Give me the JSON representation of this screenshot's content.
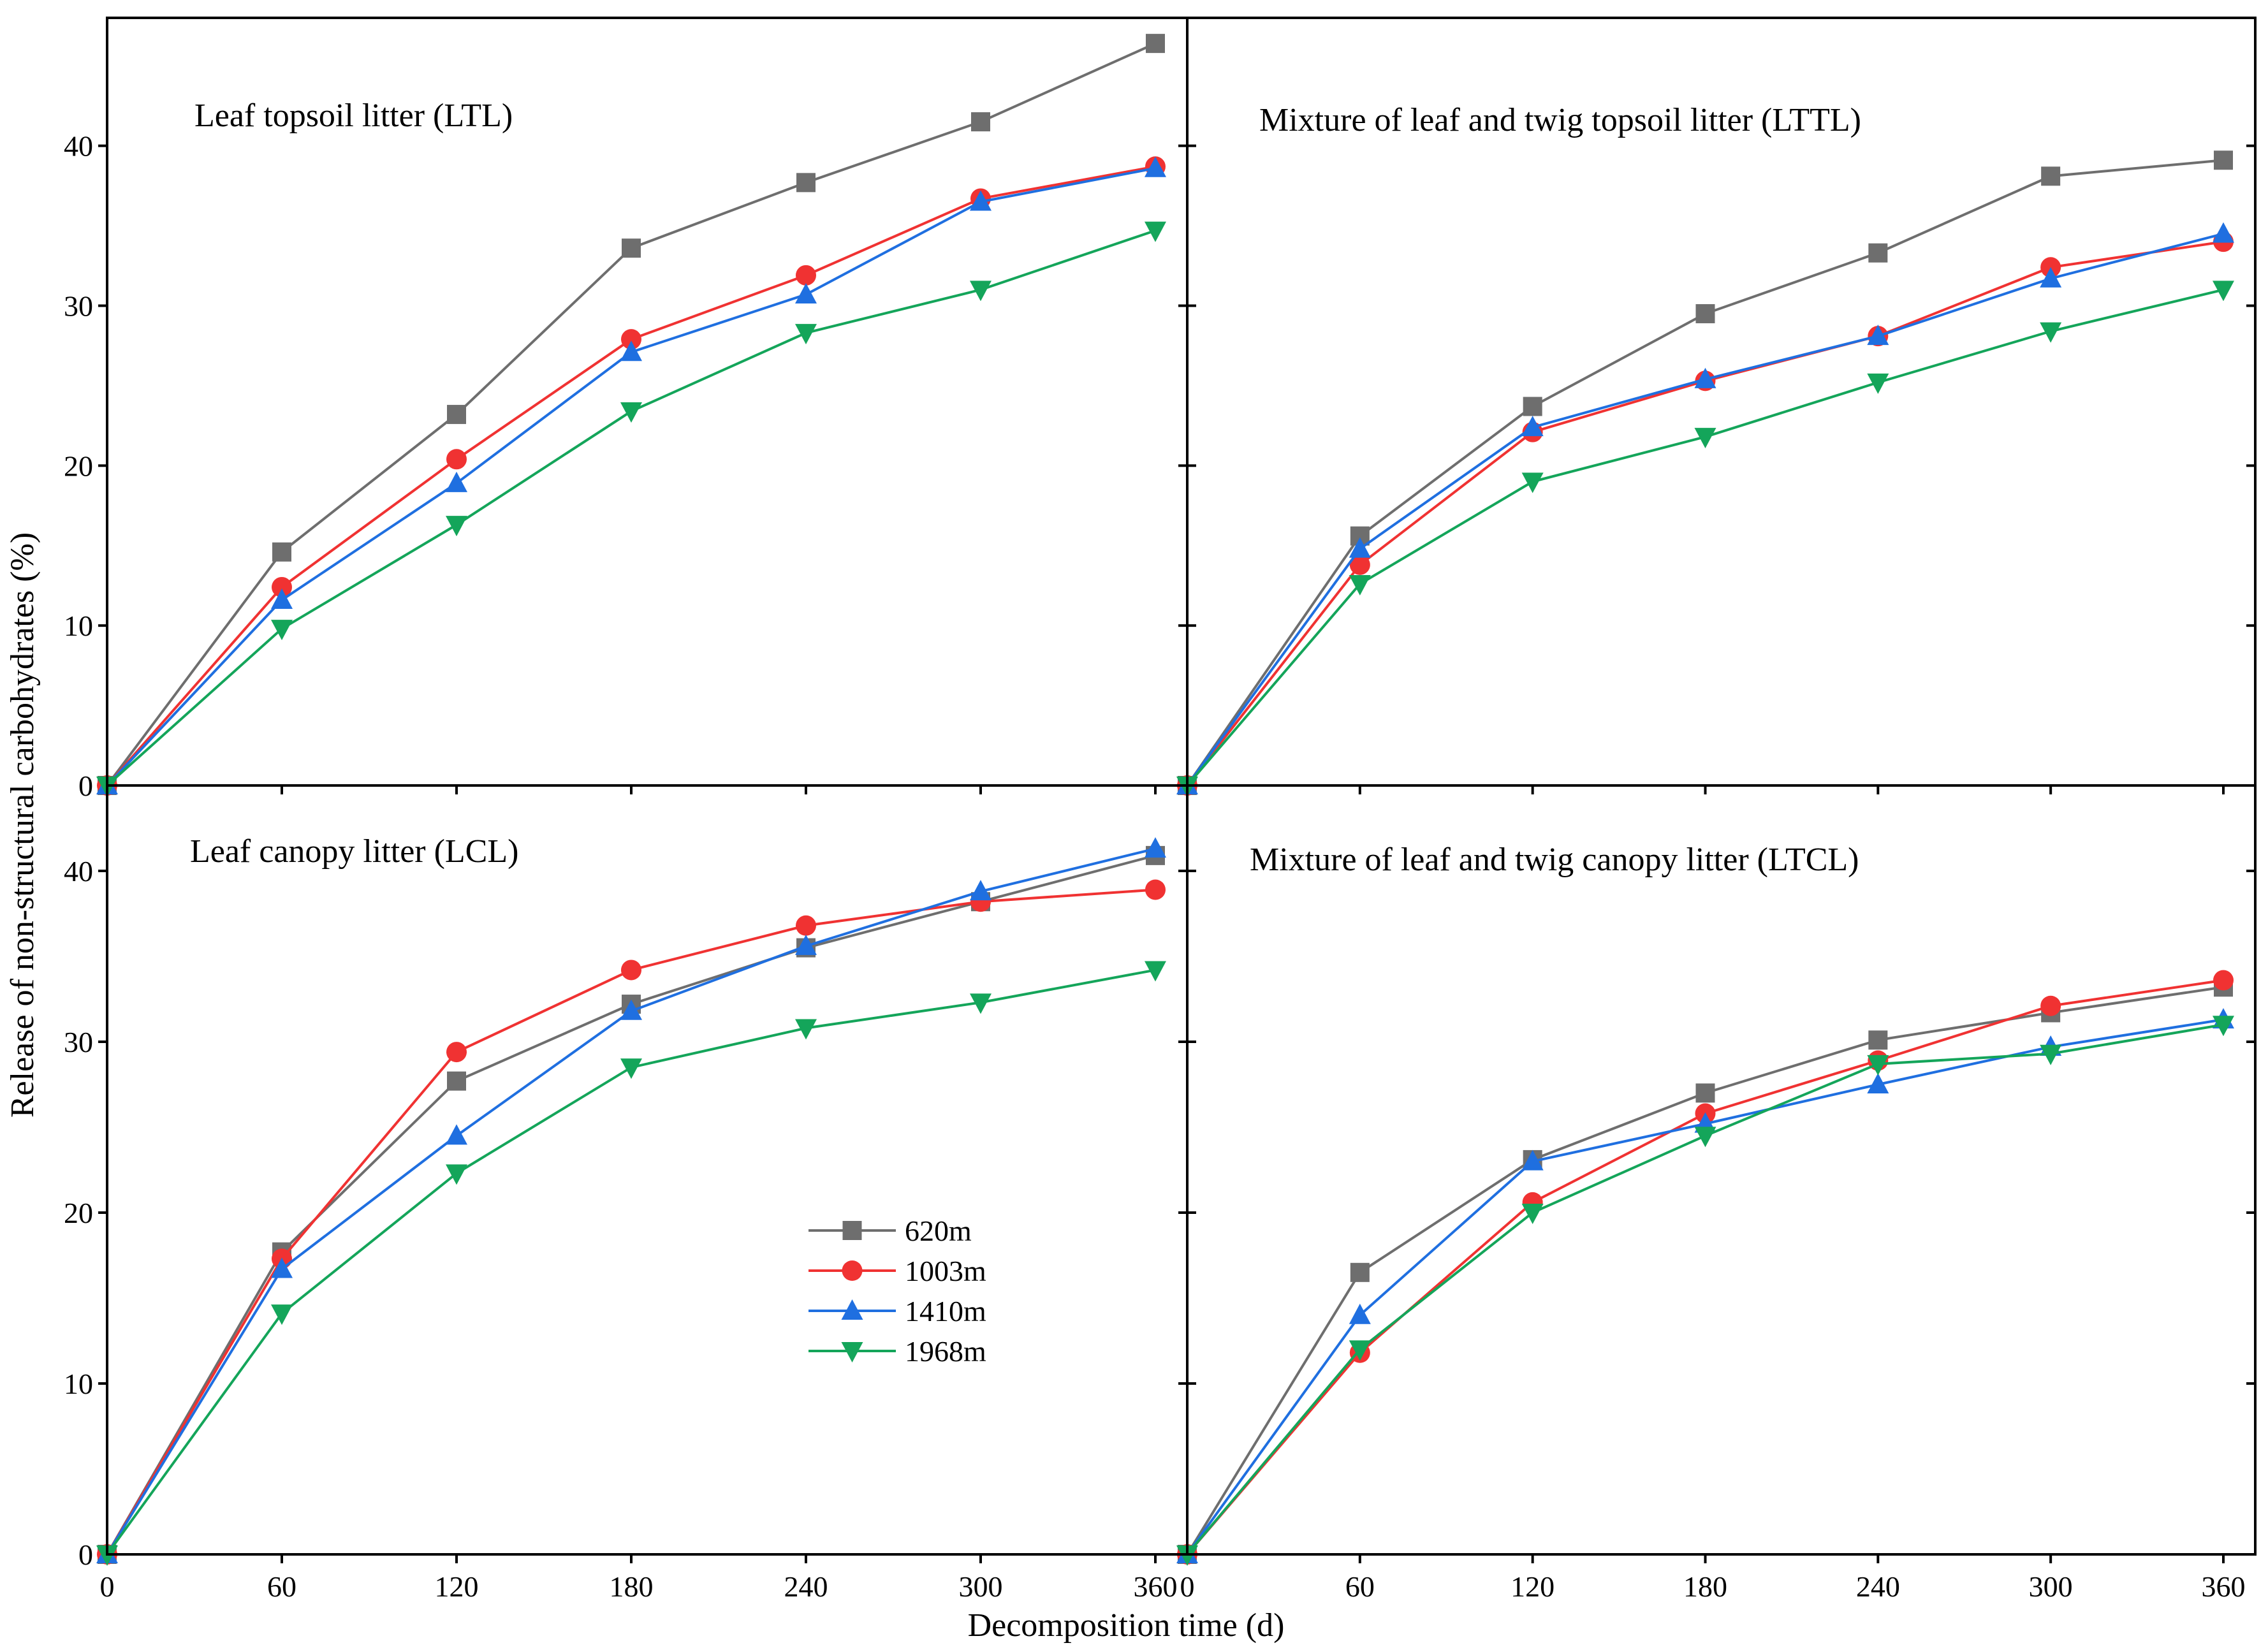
{
  "chart_data": {
    "type": "line",
    "ylabel": "Release of non-structural carbohydrates (%)",
    "xlabel": "Decomposition time (d)",
    "x": [
      0,
      60,
      120,
      180,
      240,
      300,
      360
    ],
    "xticks": [
      "0",
      "60",
      "120",
      "180",
      "240",
      "300",
      "360"
    ],
    "xlim": [
      0,
      370
    ],
    "legend": {
      "placement": "lower-left panel, center",
      "entries": [
        {
          "name": "620m",
          "color": "#6e6e6e",
          "marker": "square"
        },
        {
          "name": "1003m",
          "color": "#f03232",
          "marker": "circle"
        },
        {
          "name": "1410m",
          "color": "#1f6fe0",
          "marker": "triangle-up"
        },
        {
          "name": "1968m",
          "color": "#14a55a",
          "marker": "triangle-down"
        }
      ]
    },
    "panels": [
      {
        "id": "ltl",
        "title": "Leaf topsoil litter (LTL)",
        "ylim": [
          0,
          48
        ],
        "yticks": [
          "0",
          "10",
          "20",
          "30",
          "40"
        ],
        "series": [
          {
            "name": "620m",
            "values": [
              0,
              14.6,
              23.2,
              33.6,
              37.7,
              41.5,
              46.4
            ]
          },
          {
            "name": "1003m",
            "values": [
              0,
              12.4,
              20.4,
              27.9,
              31.9,
              36.7,
              38.7
            ]
          },
          {
            "name": "1410m",
            "values": [
              0,
              11.6,
              18.9,
              27.1,
              30.7,
              36.5,
              38.6
            ]
          },
          {
            "name": "1968m",
            "values": [
              0,
              9.8,
              16.3,
              23.4,
              28.3,
              31.0,
              34.7
            ]
          }
        ]
      },
      {
        "id": "lttl",
        "title": "Mixture of leaf and twig topsoil litter (LTTL)",
        "ylim": [
          0,
          48
        ],
        "yticks": [
          "0",
          "10",
          "20",
          "30",
          "40"
        ],
        "series": [
          {
            "name": "620m",
            "values": [
              0,
              15.6,
              23.7,
              29.5,
              33.3,
              38.1,
              39.1
            ]
          },
          {
            "name": "1003m",
            "values": [
              0,
              13.8,
              22.1,
              25.3,
              28.1,
              32.4,
              34.0
            ]
          },
          {
            "name": "1410m",
            "values": [
              0,
              14.8,
              22.4,
              25.4,
              28.1,
              31.7,
              34.5
            ]
          },
          {
            "name": "1968m",
            "values": [
              0,
              12.6,
              19.0,
              21.8,
              25.2,
              28.4,
              31.0
            ]
          }
        ]
      },
      {
        "id": "lcl",
        "title": "Leaf canopy litter (LCL)",
        "ylim": [
          0,
          45
        ],
        "yticks": [
          "0",
          "10",
          "20",
          "30",
          "40"
        ],
        "series": [
          {
            "name": "620m",
            "values": [
              0,
              17.7,
              27.7,
              32.2,
              35.5,
              38.2,
              40.9
            ]
          },
          {
            "name": "1003m",
            "values": [
              0,
              17.3,
              29.4,
              34.2,
              36.8,
              38.2,
              38.9
            ]
          },
          {
            "name": "1410m",
            "values": [
              0,
              16.7,
              24.5,
              31.8,
              35.6,
              38.8,
              41.3
            ]
          },
          {
            "name": "1968m",
            "values": [
              0,
              14.1,
              22.3,
              28.5,
              30.8,
              32.3,
              34.2
            ]
          }
        ]
      },
      {
        "id": "ltcl",
        "title": "Mixture of leaf and twig canopy litter (LTCL)",
        "ylim": [
          0,
          45
        ],
        "yticks": [
          "0",
          "10",
          "20",
          "30",
          "40"
        ],
        "series": [
          {
            "name": "620m",
            "values": [
              0,
              16.5,
              23.1,
              27.0,
              30.1,
              31.7,
              33.2
            ]
          },
          {
            "name": "1003m",
            "values": [
              0,
              11.8,
              20.6,
              25.8,
              28.9,
              32.1,
              33.6
            ]
          },
          {
            "name": "1410m",
            "values": [
              0,
              14.0,
              23.0,
              25.2,
              27.5,
              29.7,
              31.3
            ]
          },
          {
            "name": "1968m",
            "values": [
              0,
              12.0,
              20.0,
              24.5,
              28.7,
              29.3,
              31.0
            ]
          }
        ]
      }
    ]
  }
}
